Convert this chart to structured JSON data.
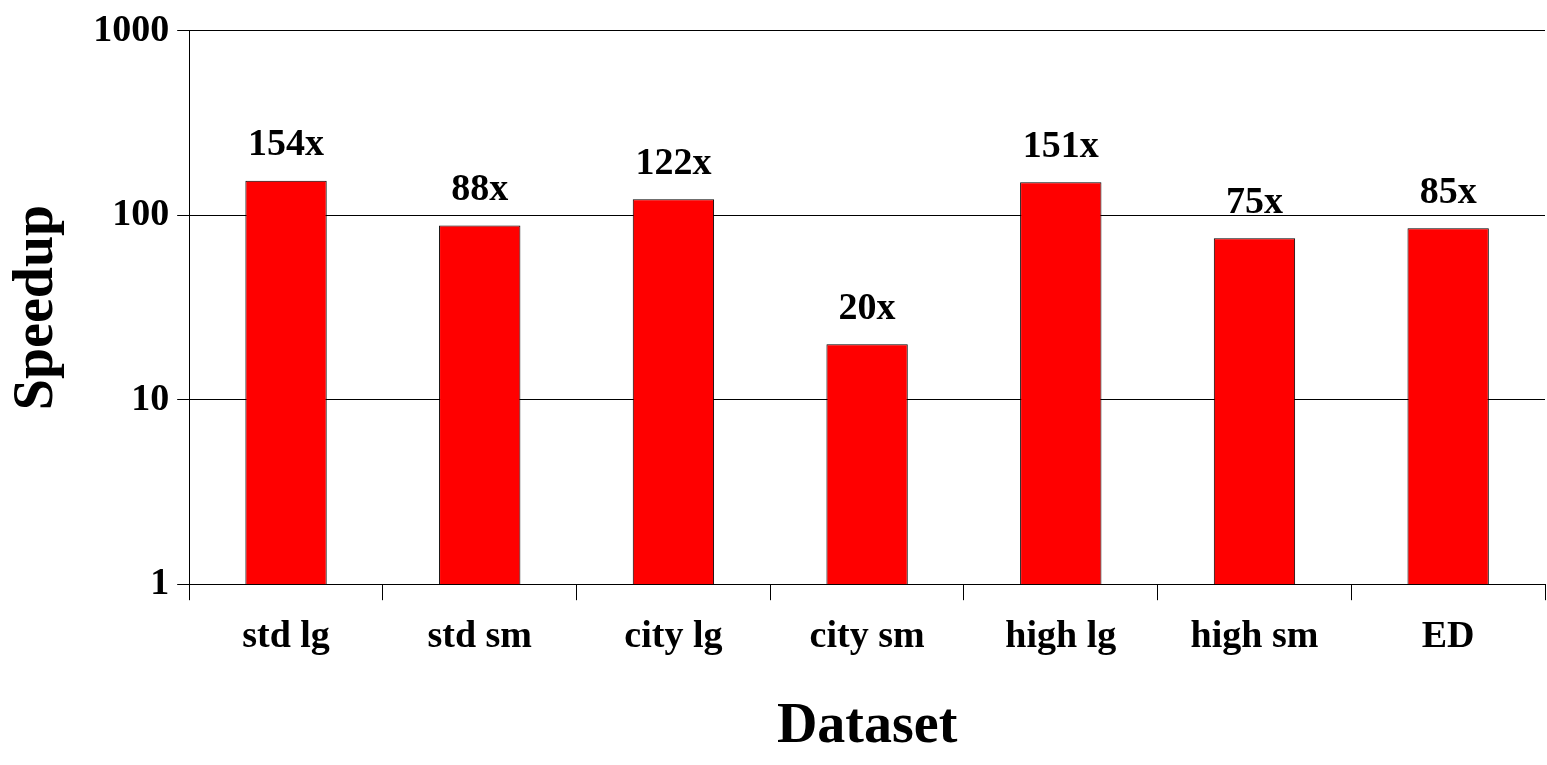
{
  "chart_data": {
    "type": "bar",
    "xlabel": "Dataset",
    "ylabel": "Speedup",
    "categories": [
      "std lg",
      "std sm",
      "city lg",
      "city sm",
      "high lg",
      "high sm",
      "ED"
    ],
    "values": [
      154,
      88,
      122,
      20,
      151,
      75,
      85
    ],
    "value_labels": [
      "154x",
      "88x",
      "122x",
      "20x",
      "151x",
      "75x",
      "85x"
    ],
    "color": "#ff0000",
    "log": "y",
    "ylim": [
      1,
      1000
    ],
    "yticks": [
      1,
      10,
      100,
      1000
    ],
    "grid": "y",
    "legend": false
  }
}
